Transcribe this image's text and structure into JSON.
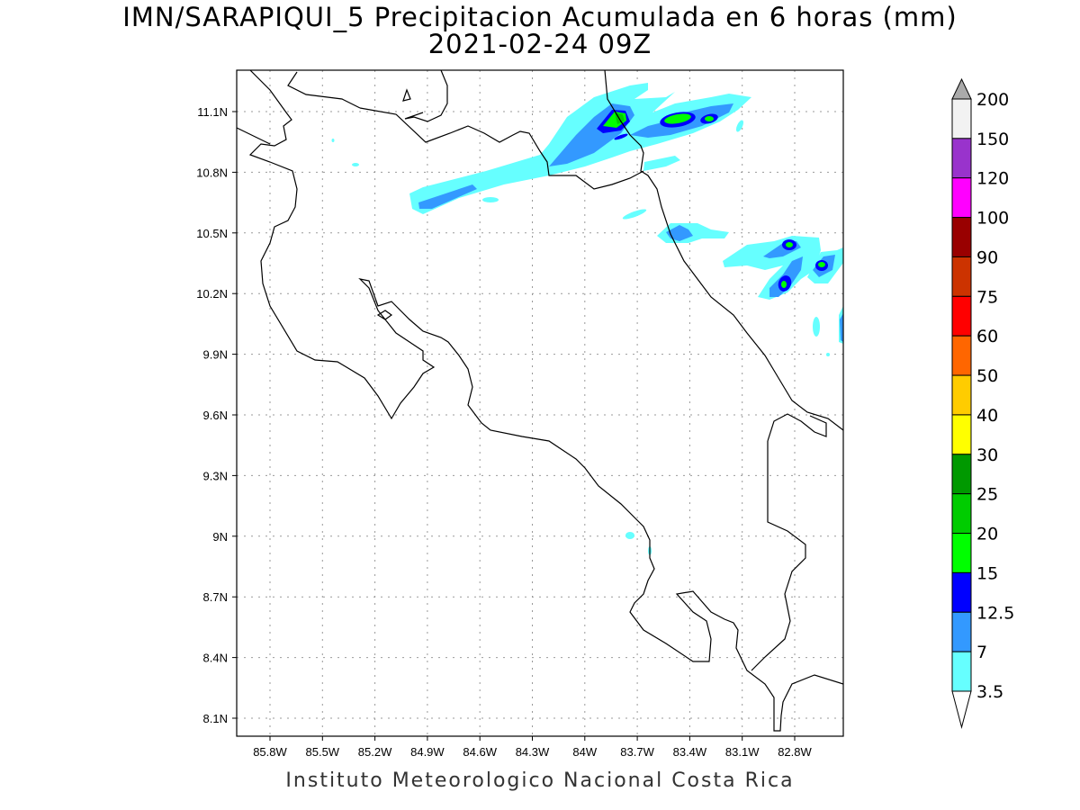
{
  "title": {
    "line1": "IMN/SARAPIQUI_5 Precipitacion Acumulada en 6 horas (mm)",
    "line2": "2021-02-24 09Z"
  },
  "footer": "Instituto Meteorologico Nacional Costa Rica",
  "map": {
    "lon_ticks": [
      "85.8W",
      "85.5W",
      "85.2W",
      "84.9W",
      "84.6W",
      "84.3W",
      "84W",
      "83.7W",
      "83.4W",
      "83.1W",
      "82.8W"
    ],
    "lon_values": [
      -85.8,
      -85.5,
      -85.2,
      -84.9,
      -84.6,
      -84.3,
      -84.0,
      -83.7,
      -83.4,
      -83.1,
      -82.8
    ],
    "lat_ticks": [
      "11.1N",
      "10.8N",
      "10.5N",
      "10.2N",
      "9.9N",
      "9.6N",
      "9.3N",
      "9N",
      "8.7N",
      "8.4N",
      "8.1N"
    ],
    "lat_values": [
      11.1,
      10.8,
      10.5,
      10.2,
      9.9,
      9.6,
      9.3,
      9.0,
      8.7,
      8.4,
      8.1
    ],
    "grid": "dotted"
  },
  "colorbar": {
    "labels": [
      "200",
      "150",
      "120",
      "100",
      "90",
      "75",
      "60",
      "50",
      "40",
      "30",
      "25",
      "20",
      "15",
      "12.5",
      "7",
      "3.5"
    ],
    "colors": [
      "#f2f2f2",
      "#9933cc",
      "#ff00ff",
      "#990000",
      "#cc3300",
      "#ff0000",
      "#ff6600",
      "#ffcc00",
      "#ffff00",
      "#009900",
      "#00cc00",
      "#00ff00",
      "#0000ff",
      "#3399ff",
      "#66ffff"
    ],
    "over_color": "#aaaaaa",
    "under_color": "#ffffff"
  }
}
